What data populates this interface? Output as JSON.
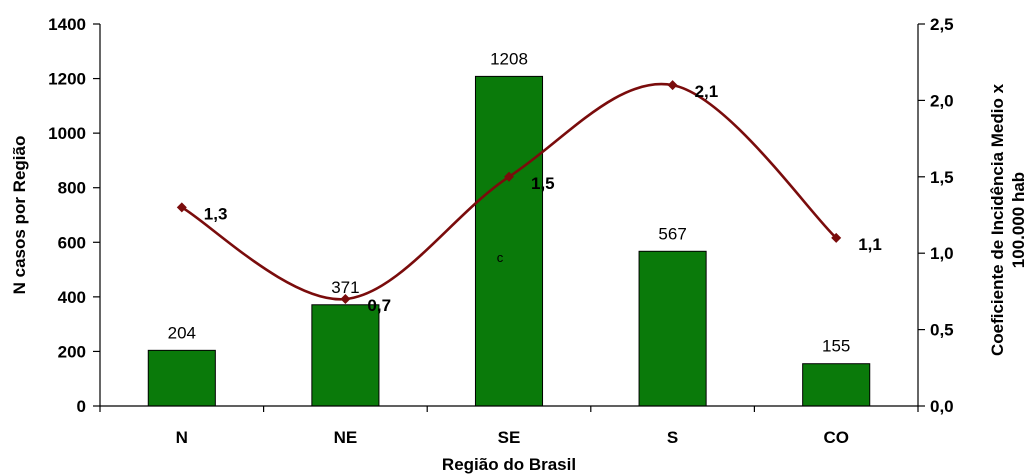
{
  "chart_data": {
    "type": "bar",
    "categories": [
      "N",
      "NE",
      "SE",
      "S",
      "CO"
    ],
    "series": [
      {
        "type": "bar",
        "axis": "left",
        "values": [
          204,
          371,
          1208,
          567,
          155
        ],
        "labels": [
          "204",
          "371",
          "1208",
          "567",
          "155"
        ]
      },
      {
        "type": "line",
        "axis": "right",
        "values": [
          1.3,
          0.7,
          1.5,
          2.1,
          1.1
        ],
        "labels": [
          "1,3",
          "0,7",
          "1,5",
          "2,1",
          "1,1"
        ]
      }
    ],
    "xlabel": "Região do Brasil",
    "ylabel": "N casos por Região",
    "y2label_line1": "Coeficiente de Incidência Medio x",
    "y2label_line2": "100.000 hab",
    "ylim": [
      0,
      1400
    ],
    "y2lim": [
      0,
      2.5
    ],
    "yticks": [
      "0",
      "200",
      "400",
      "600",
      "800",
      "1000",
      "1200",
      "1400"
    ],
    "y2ticks": [
      "0,0",
      "0,5",
      "1,0",
      "1,5",
      "2,0",
      "2,5"
    ],
    "stray_text": "c",
    "colors": {
      "bar": "#0a7a0a",
      "bar_edge": "#000000",
      "line": "#7a0c0c",
      "marker": "#7a0c0c"
    },
    "grid": false,
    "legend": "none"
  }
}
